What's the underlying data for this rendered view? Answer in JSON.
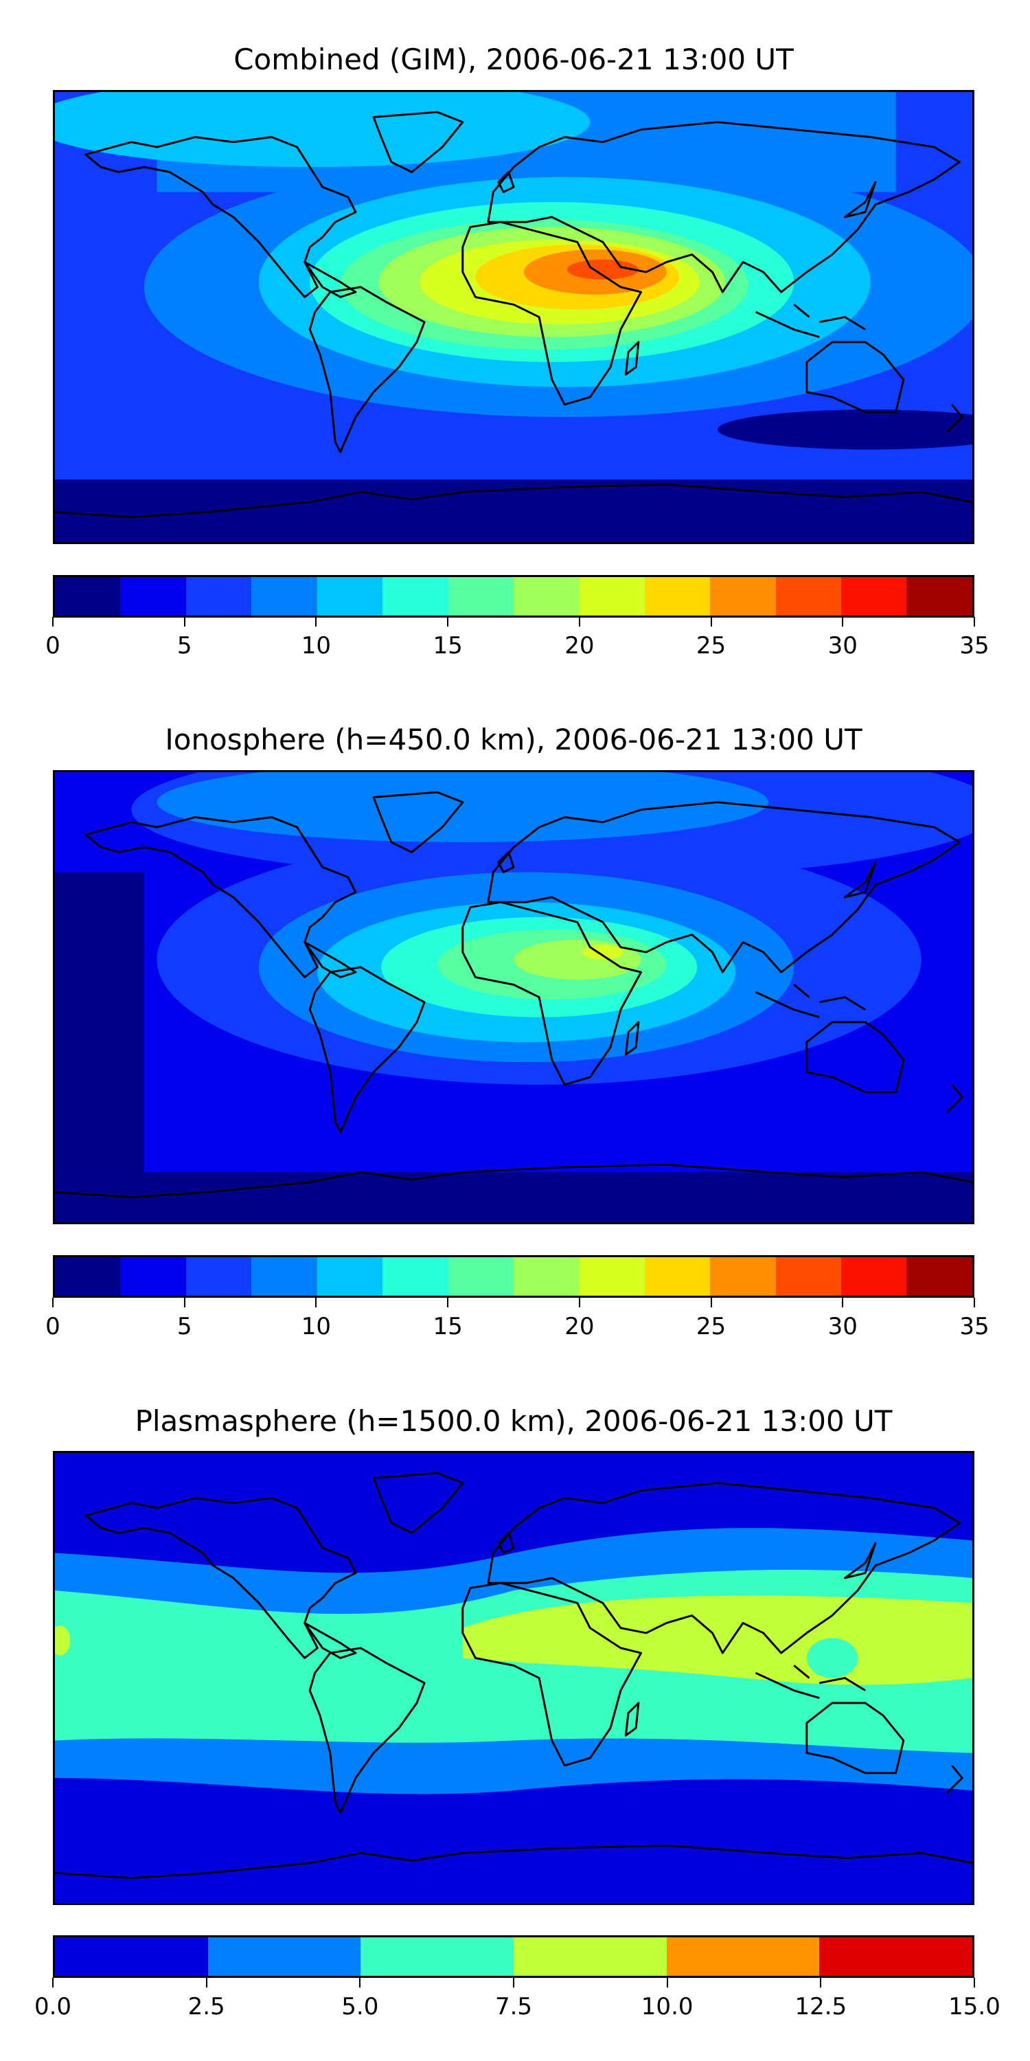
{
  "chart_data": [
    {
      "type": "heatmap",
      "title": "Combined (GIM), 2006-06-21 13:00 UT",
      "levels": [
        0,
        2.5,
        5,
        7.5,
        10,
        12.5,
        15,
        17.5,
        20,
        22.5,
        25,
        27.5,
        30,
        32.5,
        35
      ],
      "colors": [
        "#00008a",
        "#0000ef",
        "#0f3cff",
        "#0080ff",
        "#00c4ff",
        "#26ffd8",
        "#56ff9f",
        "#a0ff56",
        "#d8ff1f",
        "#ffd800",
        "#ff8f00",
        "#ff4c00",
        "#fb1000",
        "#a00000"
      ],
      "tick_labels": [
        "0",
        "5",
        "10",
        "15",
        "20",
        "25",
        "30",
        "35"
      ],
      "vrange": [
        0,
        35
      ],
      "max_region": "north-east Africa / Arabia (~25-30)"
    },
    {
      "type": "heatmap",
      "title": "Ionosphere  (h=450.0 km), 2006-06-21 13:00 UT",
      "levels": [
        0,
        2.5,
        5,
        7.5,
        10,
        12.5,
        15,
        17.5,
        20,
        22.5,
        25,
        27.5,
        30,
        32.5,
        35
      ],
      "colors": [
        "#00008a",
        "#0000ef",
        "#0f3cff",
        "#0080ff",
        "#00c4ff",
        "#26ffd8",
        "#56ff9f",
        "#a0ff56",
        "#d8ff1f",
        "#ffd800",
        "#ff8f00",
        "#ff4c00",
        "#fb1000",
        "#a00000"
      ],
      "tick_labels": [
        "0",
        "5",
        "10",
        "15",
        "20",
        "25",
        "30",
        "35"
      ],
      "vrange": [
        0,
        35
      ],
      "max_region": "north-east Africa (~20-22.5)"
    },
    {
      "type": "heatmap",
      "title": "Plasmasphere (h=1500.0 km), 2006-06-21 13:00 UT",
      "levels": [
        0,
        2.5,
        5,
        7.5,
        10,
        12.5,
        15
      ],
      "colors": [
        "#0000dc",
        "#0080ff",
        "#38ffc1",
        "#c1ff38",
        "#ff9400",
        "#dc0000"
      ],
      "tick_labels": [
        "0.0",
        "2.5",
        "5.0",
        "7.5",
        "10.0",
        "12.5",
        "15.0"
      ],
      "vrange": [
        0,
        15
      ],
      "max_region": "Africa to Asia low latitudes (~7.5-10)"
    }
  ]
}
